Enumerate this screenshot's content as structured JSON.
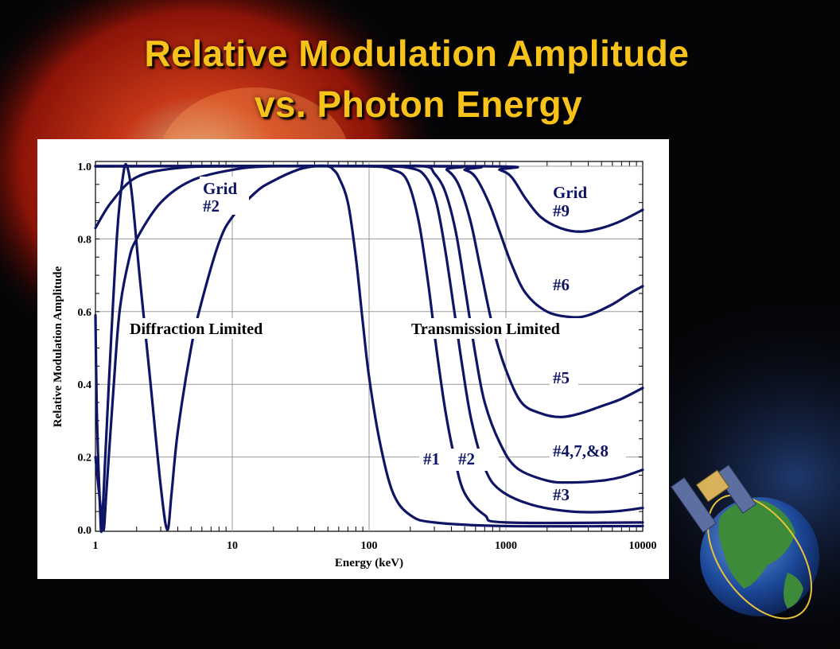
{
  "slide": {
    "title_line_1": "Relative Modulation Amplitude",
    "title_line_2": "vs. Photon Energy"
  },
  "colors": {
    "background": "#050508",
    "title": "#f7c21a",
    "curve": "#0f1465",
    "panel": "#ffffff"
  },
  "decorations": [
    "sun-image",
    "satellite-icon",
    "earth-globe-icon"
  ],
  "chart_data": {
    "type": "line",
    "title": "Relative Modulation Amplitude vs. Photon Energy",
    "xlabel": "Energy (keV)",
    "ylabel": "Relative Modulation Amplitude",
    "xscale": "log",
    "xlim": [
      1,
      10000
    ],
    "ylim": [
      0.0,
      1.02
    ],
    "grid": true,
    "xticks": [
      "1",
      "10",
      "100",
      "1000",
      "10000"
    ],
    "yticks": [
      "0.0",
      "0.2",
      "0.4",
      "0.6",
      "0.8",
      "1.0"
    ],
    "region_labels": [
      "Diffraction Limited",
      "Transmission Limited"
    ],
    "curve_labels": [
      "Grid",
      "#2",
      "Grid",
      "#9",
      "#6",
      "#5",
      "#4,7,&8",
      "#3",
      "#1",
      "#2"
    ],
    "series": [
      {
        "points": [
          [
            1,
            0.59
          ],
          [
            1.02,
            0.35
          ],
          [
            1.05,
            0.18
          ],
          [
            1.08,
            0.06
          ],
          [
            1.11,
            0.0
          ],
          [
            1.18,
            0.2
          ],
          [
            1.3,
            0.52
          ],
          [
            1.45,
            0.83
          ],
          [
            1.6,
            0.98
          ],
          [
            1.7,
            1.0
          ],
          [
            1.85,
            0.92
          ],
          [
            2.1,
            0.7
          ],
          [
            2.5,
            0.42
          ],
          [
            3.0,
            0.12
          ],
          [
            3.35,
            0.0
          ],
          [
            3.6,
            0.1
          ],
          [
            4.0,
            0.27
          ],
          [
            5,
            0.5
          ],
          [
            6,
            0.63
          ],
          [
            8,
            0.79
          ],
          [
            10,
            0.86
          ],
          [
            15,
            0.93
          ],
          [
            20,
            0.96
          ],
          [
            30,
            0.99
          ],
          [
            40,
            1.0
          ],
          [
            50,
            1.0
          ],
          [
            55,
            0.99
          ],
          [
            60,
            0.97
          ],
          [
            70,
            0.9
          ],
          [
            80,
            0.75
          ],
          [
            90,
            0.57
          ],
          [
            100,
            0.42
          ],
          [
            120,
            0.24
          ],
          [
            150,
            0.1
          ],
          [
            200,
            0.04
          ],
          [
            300,
            0.02
          ],
          [
            1000,
            0.01
          ],
          [
            10000,
            0.01
          ]
        ]
      },
      {
        "points": [
          [
            1,
            0.2
          ],
          [
            1.05,
            0.12
          ],
          [
            1.1,
            0.05
          ],
          [
            1.15,
            0.0
          ],
          [
            1.2,
            0.1
          ],
          [
            1.35,
            0.38
          ],
          [
            1.5,
            0.6
          ],
          [
            1.75,
            0.74
          ],
          [
            2,
            0.8
          ],
          [
            3,
            0.9
          ],
          [
            5,
            0.96
          ],
          [
            10,
            0.99
          ],
          [
            20,
            1.0
          ],
          [
            100,
            1.0
          ],
          [
            150,
            0.99
          ],
          [
            190,
            0.96
          ],
          [
            230,
            0.85
          ],
          [
            270,
            0.68
          ],
          [
            310,
            0.5
          ],
          [
            360,
            0.33
          ],
          [
            420,
            0.2
          ],
          [
            500,
            0.1
          ],
          [
            700,
            0.04
          ],
          [
            1000,
            0.02
          ],
          [
            10000,
            0.02
          ]
        ]
      },
      {
        "points": [
          [
            1,
            0.83
          ],
          [
            1.3,
            0.9
          ],
          [
            2,
            0.97
          ],
          [
            4,
            0.995
          ],
          [
            10,
            1.0
          ],
          [
            100,
            1.0
          ],
          [
            200,
            0.995
          ],
          [
            260,
            0.97
          ],
          [
            310,
            0.9
          ],
          [
            360,
            0.77
          ],
          [
            420,
            0.6
          ],
          [
            480,
            0.45
          ],
          [
            560,
            0.3
          ],
          [
            700,
            0.17
          ],
          [
            900,
            0.11
          ],
          [
            1500,
            0.07
          ],
          [
            3000,
            0.05
          ],
          [
            6000,
            0.05
          ],
          [
            10000,
            0.06
          ]
        ]
      },
      {
        "points": [
          [
            1,
            1.0
          ],
          [
            100,
            1.0
          ],
          [
            250,
            1.0
          ],
          [
            300,
            0.98
          ],
          [
            360,
            0.93
          ],
          [
            430,
            0.82
          ],
          [
            500,
            0.67
          ],
          [
            600,
            0.48
          ],
          [
            700,
            0.35
          ],
          [
            900,
            0.24
          ],
          [
            1200,
            0.17
          ],
          [
            2000,
            0.135
          ],
          [
            3000,
            0.13
          ],
          [
            5000,
            0.135
          ],
          [
            7000,
            0.145
          ],
          [
            10000,
            0.165
          ]
        ]
      },
      {
        "points": [
          [
            1,
            1.0
          ],
          [
            300,
            1.0
          ],
          [
            370,
            0.99
          ],
          [
            450,
            0.95
          ],
          [
            550,
            0.85
          ],
          [
            650,
            0.72
          ],
          [
            800,
            0.56
          ],
          [
            1000,
            0.44
          ],
          [
            1300,
            0.35
          ],
          [
            1800,
            0.32
          ],
          [
            2500,
            0.31
          ],
          [
            3500,
            0.32
          ],
          [
            5000,
            0.34
          ],
          [
            7000,
            0.36
          ],
          [
            10000,
            0.39
          ]
        ]
      },
      {
        "points": [
          [
            1,
            1.0
          ],
          [
            400,
            1.0
          ],
          [
            500,
            0.99
          ],
          [
            600,
            0.97
          ],
          [
            750,
            0.9
          ],
          [
            900,
            0.82
          ],
          [
            1100,
            0.73
          ],
          [
            1400,
            0.65
          ],
          [
            2000,
            0.6
          ],
          [
            3000,
            0.585
          ],
          [
            4000,
            0.59
          ],
          [
            6000,
            0.62
          ],
          [
            8000,
            0.65
          ],
          [
            10000,
            0.67
          ]
        ]
      },
      {
        "points": [
          [
            1,
            1.0
          ],
          [
            700,
            1.0
          ],
          [
            900,
            0.99
          ],
          [
            1100,
            0.97
          ],
          [
            1400,
            0.91
          ],
          [
            1800,
            0.86
          ],
          [
            2500,
            0.83
          ],
          [
            3500,
            0.82
          ],
          [
            5000,
            0.83
          ],
          [
            7000,
            0.85
          ],
          [
            10000,
            0.88
          ]
        ]
      }
    ]
  }
}
